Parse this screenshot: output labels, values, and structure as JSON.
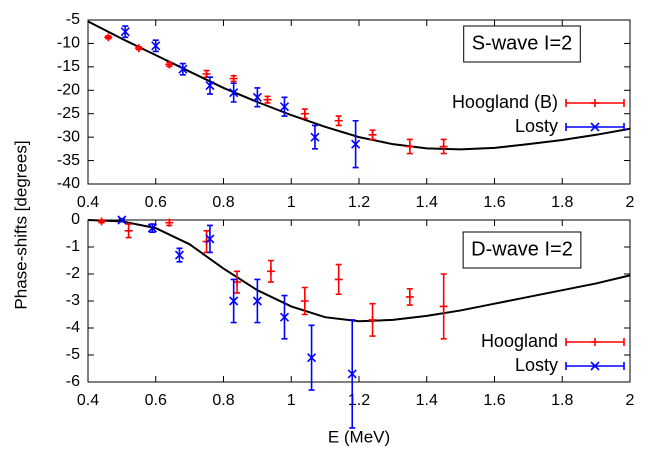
{
  "chart_data": [
    {
      "type": "errorbar",
      "ylabel": "Phase-shifts [degrees]",
      "annotation": "S-wave I=2",
      "xlim": [
        0.4,
        2
      ],
      "xticks": [
        0.4,
        0.6,
        0.8,
        1,
        1.2,
        1.4,
        1.6,
        1.8,
        2
      ],
      "ylim": [
        -40,
        -5
      ],
      "yticks": [
        -5,
        -10,
        -15,
        -20,
        -25,
        -30,
        -35,
        -40
      ],
      "series": [
        {
          "name": "Hoogland (B)",
          "color": "#ff0000",
          "marker": "plus",
          "x": [
            0.46,
            0.55,
            0.64,
            0.75,
            0.83,
            0.93,
            1.04,
            1.14,
            1.24,
            1.35,
            1.45
          ],
          "values": [
            -8.7,
            -11,
            -14.5,
            -16.5,
            -17.5,
            -22,
            -25,
            -26.5,
            -29.5,
            -32,
            -32
          ],
          "errors": [
            0.3,
            0.3,
            0.4,
            0.7,
            0.6,
            0.7,
            1,
            1,
            1,
            1.5,
            1.5
          ]
        },
        {
          "name": "Losty",
          "color": "#0000ff",
          "marker": "cross",
          "x": [
            0.51,
            0.6,
            0.68,
            0.76,
            0.83,
            0.9,
            0.98,
            1.07,
            1.19
          ],
          "values": [
            -7.5,
            -10.5,
            -15.5,
            -19,
            -20.5,
            -21.5,
            -23.5,
            -30,
            -31.5
          ],
          "errors": [
            1.2,
            1.2,
            1.2,
            1.8,
            2,
            2,
            2,
            2.5,
            5
          ]
        }
      ],
      "curve": {
        "color": "#000000",
        "x": [
          0.4,
          0.5,
          0.6,
          0.7,
          0.8,
          0.9,
          1.0,
          1.1,
          1.2,
          1.3,
          1.4,
          1.5,
          1.6,
          1.7,
          1.8,
          1.9,
          2.0
        ],
        "values": [
          -5.3,
          -9,
          -12.5,
          -16,
          -19.5,
          -22.5,
          -25.3,
          -27.8,
          -30,
          -31.5,
          -32.4,
          -32.6,
          -32.3,
          -31.5,
          -30.6,
          -29.5,
          -28.2
        ]
      }
    },
    {
      "type": "errorbar",
      "xlabel": "E (MeV)",
      "annotation": "D-wave I=2",
      "xlim": [
        0.4,
        2
      ],
      "xticks": [
        0.4,
        0.6,
        0.8,
        1,
        1.2,
        1.4,
        1.6,
        1.8,
        2
      ],
      "ylim": [
        -6,
        0
      ],
      "yticks": [
        0,
        -1,
        -2,
        -3,
        -4,
        -5,
        -6
      ],
      "series": [
        {
          "name": "Hoogland",
          "color": "#ff0000",
          "marker": "plus",
          "x": [
            0.44,
            0.52,
            0.64,
            0.75,
            0.84,
            0.94,
            1.04,
            1.14,
            1.24,
            1.35,
            1.45
          ],
          "values": [
            -0.05,
            -0.4,
            -0.1,
            -0.8,
            -2.3,
            -1.9,
            -3.0,
            -2.2,
            -3.7,
            -2.85,
            -3.2
          ],
          "errors": [
            0.05,
            0.25,
            0.1,
            0.4,
            0.4,
            0.4,
            0.5,
            0.55,
            0.6,
            0.3,
            1.2
          ]
        },
        {
          "name": "Losty",
          "color": "#0000ff",
          "marker": "cross",
          "x": [
            0.5,
            0.59,
            0.67,
            0.76,
            0.83,
            0.9,
            0.98,
            1.06,
            1.18
          ],
          "values": [
            0,
            -0.3,
            -1.3,
            -0.7,
            -3.0,
            -3.0,
            -3.6,
            -5.1,
            -5.7
          ],
          "errors": [
            0.05,
            0.15,
            0.25,
            0.5,
            0.8,
            0.8,
            0.8,
            1.2,
            2
          ]
        }
      ],
      "curve": {
        "color": "#000000",
        "x": [
          0.4,
          0.5,
          0.6,
          0.7,
          0.8,
          0.9,
          1.0,
          1.1,
          1.2,
          1.3,
          1.4,
          1.5,
          1.6,
          1.7,
          1.8,
          1.9,
          2.0
        ],
        "values": [
          0,
          -0.05,
          -0.3,
          -0.9,
          -1.8,
          -2.6,
          -3.2,
          -3.6,
          -3.75,
          -3.7,
          -3.55,
          -3.35,
          -3.1,
          -2.85,
          -2.6,
          -2.35,
          -2.05
        ]
      }
    }
  ]
}
